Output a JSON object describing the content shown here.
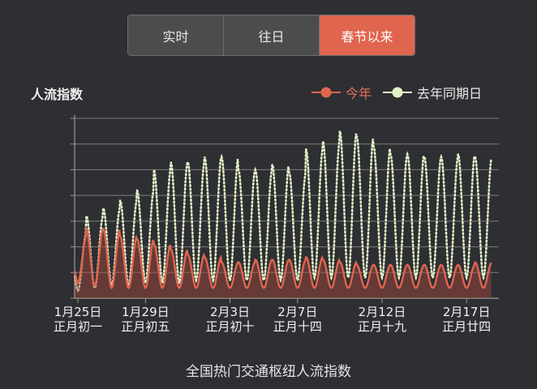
{
  "tabs": [
    {
      "label": "实时",
      "active": false
    },
    {
      "label": "往日",
      "active": false
    },
    {
      "label": "春节以来",
      "active": true
    }
  ],
  "chart_title": "人流指数",
  "caption": "全国热门交通枢纽人流指数",
  "colors": {
    "this_year": "#e0654f",
    "last_year": "#e4f2c9",
    "active_tab": "#e0654f"
  },
  "chart_data": {
    "type": "line",
    "title": "人流指数",
    "ylim": [
      0,
      7
    ],
    "grid": true,
    "legend_position": "top-right",
    "x_ticks": [
      {
        "day": 0,
        "date": "1月25日",
        "lunar": "正月初一"
      },
      {
        "day": 4,
        "date": "1月29日",
        "lunar": "正月初五"
      },
      {
        "day": 9,
        "date": "2月3日",
        "lunar": "正月初十"
      },
      {
        "day": 13,
        "date": "2月7日",
        "lunar": "正月十四"
      },
      {
        "day": 18,
        "date": "2月12日",
        "lunar": "正月十九"
      },
      {
        "day": 23,
        "date": "2月17日",
        "lunar": "正月廿四"
      }
    ],
    "series": [
      {
        "name": "今年",
        "style": "solid",
        "daily_peak": [
          2.4,
          2.7,
          2.7,
          2.4,
          2.3,
          2.1,
          1.9,
          1.7,
          1.6,
          1.4,
          1.4,
          1.5,
          1.5,
          1.5,
          1.6,
          1.5,
          1.4,
          1.3,
          1.3,
          1.3,
          1.3,
          1.3,
          1.3,
          1.3,
          1.4
        ],
        "daily_low": [
          0.6,
          0.5,
          0.4,
          0.4,
          0.4,
          0.4,
          0.4,
          0.4,
          0.4,
          0.4,
          0.4,
          0.4,
          0.4,
          0.4,
          0.4,
          0.4,
          0.4,
          0.4,
          0.4,
          0.4,
          0.4,
          0.4,
          0.4,
          0.4,
          0.4
        ]
      },
      {
        "name": "去年同期日",
        "style": "dotted",
        "daily_peak": [
          2.5,
          3.2,
          3.5,
          3.8,
          4.2,
          5.0,
          5.3,
          5.3,
          5.5,
          5.5,
          5.0,
          5.0,
          5.2,
          4.9,
          5.8,
          6.1,
          6.5,
          6.3,
          5.9,
          5.6,
          5.6,
          5.5,
          5.5,
          5.6,
          5.5
        ],
        "daily_low": [
          0.3,
          0.4,
          0.5,
          0.5,
          0.6,
          0.6,
          0.6,
          0.7,
          0.7,
          0.7,
          0.7,
          0.7,
          0.7,
          0.7,
          0.8,
          0.8,
          0.8,
          0.8,
          0.8,
          0.8,
          0.8,
          0.8,
          0.8,
          0.8,
          0.8
        ]
      }
    ]
  }
}
